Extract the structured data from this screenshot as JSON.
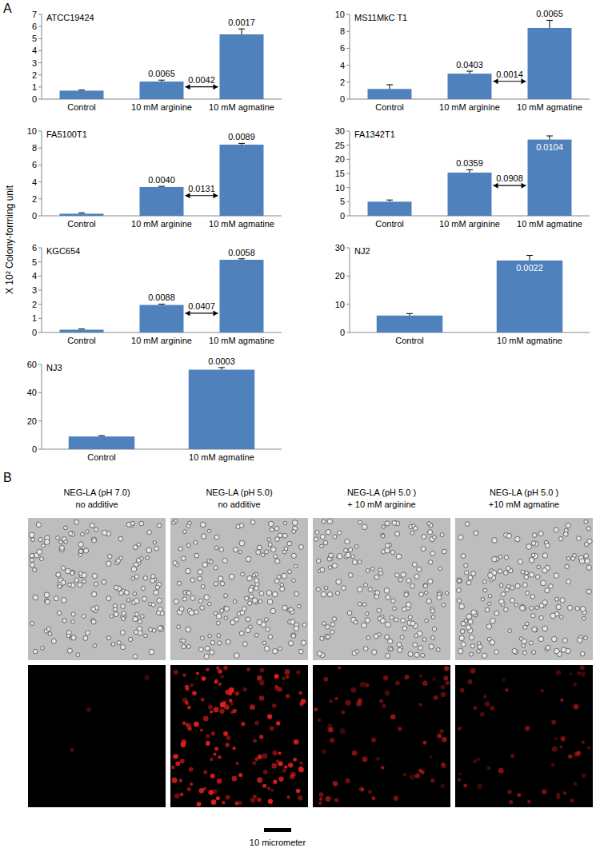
{
  "chart_data": [
    {
      "type": "bar",
      "title": "ATCC19424",
      "color": "#4f81bd",
      "categories": [
        "Control",
        "10 mM arginine",
        "10 mM agmatine"
      ],
      "values": [
        0.7,
        1.45,
        5.35
      ],
      "errors": [
        0.05,
        0.12,
        0.45
      ],
      "ylim": [
        0,
        7
      ],
      "yticks": [
        0,
        1,
        2,
        3,
        4,
        5,
        6,
        7
      ],
      "annotations": [
        {
          "category": "10 mM arginine",
          "text": "0.0065"
        },
        {
          "category": "10 mM agmatine",
          "text": "0.0017"
        }
      ],
      "bracket": {
        "between": [
          "10 mM arginine",
          "10 mM agmatine"
        ],
        "text": "0.0042"
      }
    },
    {
      "type": "bar",
      "title": "MS11MkC T1",
      "color": "#4f81bd",
      "categories": [
        "Control",
        "10 mM arginine",
        "10 mM agmatine"
      ],
      "values": [
        1.2,
        3.0,
        8.4
      ],
      "errors": [
        0.5,
        0.3,
        0.9
      ],
      "ylim": [
        0,
        10
      ],
      "yticks": [
        0,
        2,
        4,
        6,
        8,
        10
      ],
      "annotations": [
        {
          "category": "10 mM arginine",
          "text": "0.0403"
        },
        {
          "category": "10 mM agmatine",
          "text": "0.0065"
        }
      ],
      "bracket": {
        "between": [
          "10 mM arginine",
          "10 mM agmatine"
        ],
        "text": "0.0014"
      }
    },
    {
      "type": "bar",
      "title": "FA5100T1",
      "color": "#4f81bd",
      "categories": [
        "Control",
        "10 mM arginine",
        "10 mM agmatine"
      ],
      "values": [
        0.25,
        3.4,
        8.4
      ],
      "errors": [
        0.1,
        0.08,
        0.15
      ],
      "ylim": [
        0,
        10
      ],
      "yticks": [
        0,
        2,
        4,
        6,
        8,
        10
      ],
      "annotations": [
        {
          "category": "10 mM arginine",
          "text": "0.0040"
        },
        {
          "category": "10 mM agmatine",
          "text": "0.0089"
        }
      ],
      "bracket": {
        "between": [
          "10 mM arginine",
          "10 mM agmatine"
        ],
        "text": "0.0131"
      }
    },
    {
      "type": "bar",
      "title": "FA1342T1",
      "color": "#4f81bd",
      "categories": [
        "Control",
        "10 mM arginine",
        "10 mM agmatine"
      ],
      "values": [
        5.0,
        15.3,
        27.0
      ],
      "errors": [
        0.6,
        1.0,
        1.3
      ],
      "ylim": [
        0,
        30
      ],
      "yticks": [
        0,
        5,
        10,
        15,
        20,
        25,
        30
      ],
      "annotations": [
        {
          "category": "10 mM arginine",
          "text": "0.0359"
        },
        {
          "category": "10 mM agmatine",
          "text": "0.0104",
          "color": "#ffffff"
        }
      ],
      "bracket": {
        "between": [
          "10 mM arginine",
          "10 mM agmatine"
        ],
        "text": "0.0908"
      }
    },
    {
      "type": "bar",
      "title": "KGC654",
      "color": "#4f81bd",
      "categories": [
        "Control",
        "10 mM arginine",
        "10 mM agmatine"
      ],
      "values": [
        0.2,
        1.95,
        5.15
      ],
      "errors": [
        0.05,
        0.06,
        0.07
      ],
      "ylim": [
        0,
        6
      ],
      "yticks": [
        0,
        1,
        2,
        3,
        4,
        5,
        6
      ],
      "annotations": [
        {
          "category": "10 mM arginine",
          "text": "0.0088"
        },
        {
          "category": "10 mM agmatine",
          "text": "0.0058"
        }
      ],
      "bracket": {
        "between": [
          "10 mM arginine",
          "10 mM agmatine"
        ],
        "text": "0.0407"
      }
    },
    {
      "type": "bar",
      "title": "NJ2",
      "color": "#4f81bd",
      "categories": [
        "Control",
        "10 mM agmatine"
      ],
      "values": [
        6.0,
        25.5
      ],
      "errors": [
        0.7,
        1.8
      ],
      "ylim": [
        0,
        30
      ],
      "yticks": [
        0,
        10,
        20,
        30
      ],
      "annotations": [
        {
          "category": "10 mM agmatine",
          "text": "0.0022",
          "color": "#ffffff"
        }
      ]
    },
    {
      "type": "bar",
      "title": "NJ3",
      "color": "#4f81bd",
      "categories": [
        "Control",
        "10 mM agmatine"
      ],
      "values": [
        9.0,
        56.3
      ],
      "errors": [
        0.6,
        1.5
      ],
      "ylim": [
        0,
        60
      ],
      "yticks": [
        0,
        20,
        40,
        60
      ],
      "annotations": [
        {
          "category": "10 mM agmatine",
          "text": "0.0003"
        }
      ]
    }
  ],
  "figure": {
    "panel_labels": [
      "A",
      "B"
    ],
    "y_label": "X 10² Colony-forming unit",
    "panel_b": {
      "columns": [
        [
          "NEG-LA (pH 7.0)",
          "no additive"
        ],
        [
          "NEG-LA (pH 5.0)",
          "no additive"
        ],
        [
          "NEG-LA (pH 5.0 )",
          "+ 10 mM arginine"
        ],
        [
          "NEG-LA (pH 5.0 )",
          "+10 mM agmatine"
        ]
      ],
      "scale_bar": "10 micrometer"
    }
  }
}
